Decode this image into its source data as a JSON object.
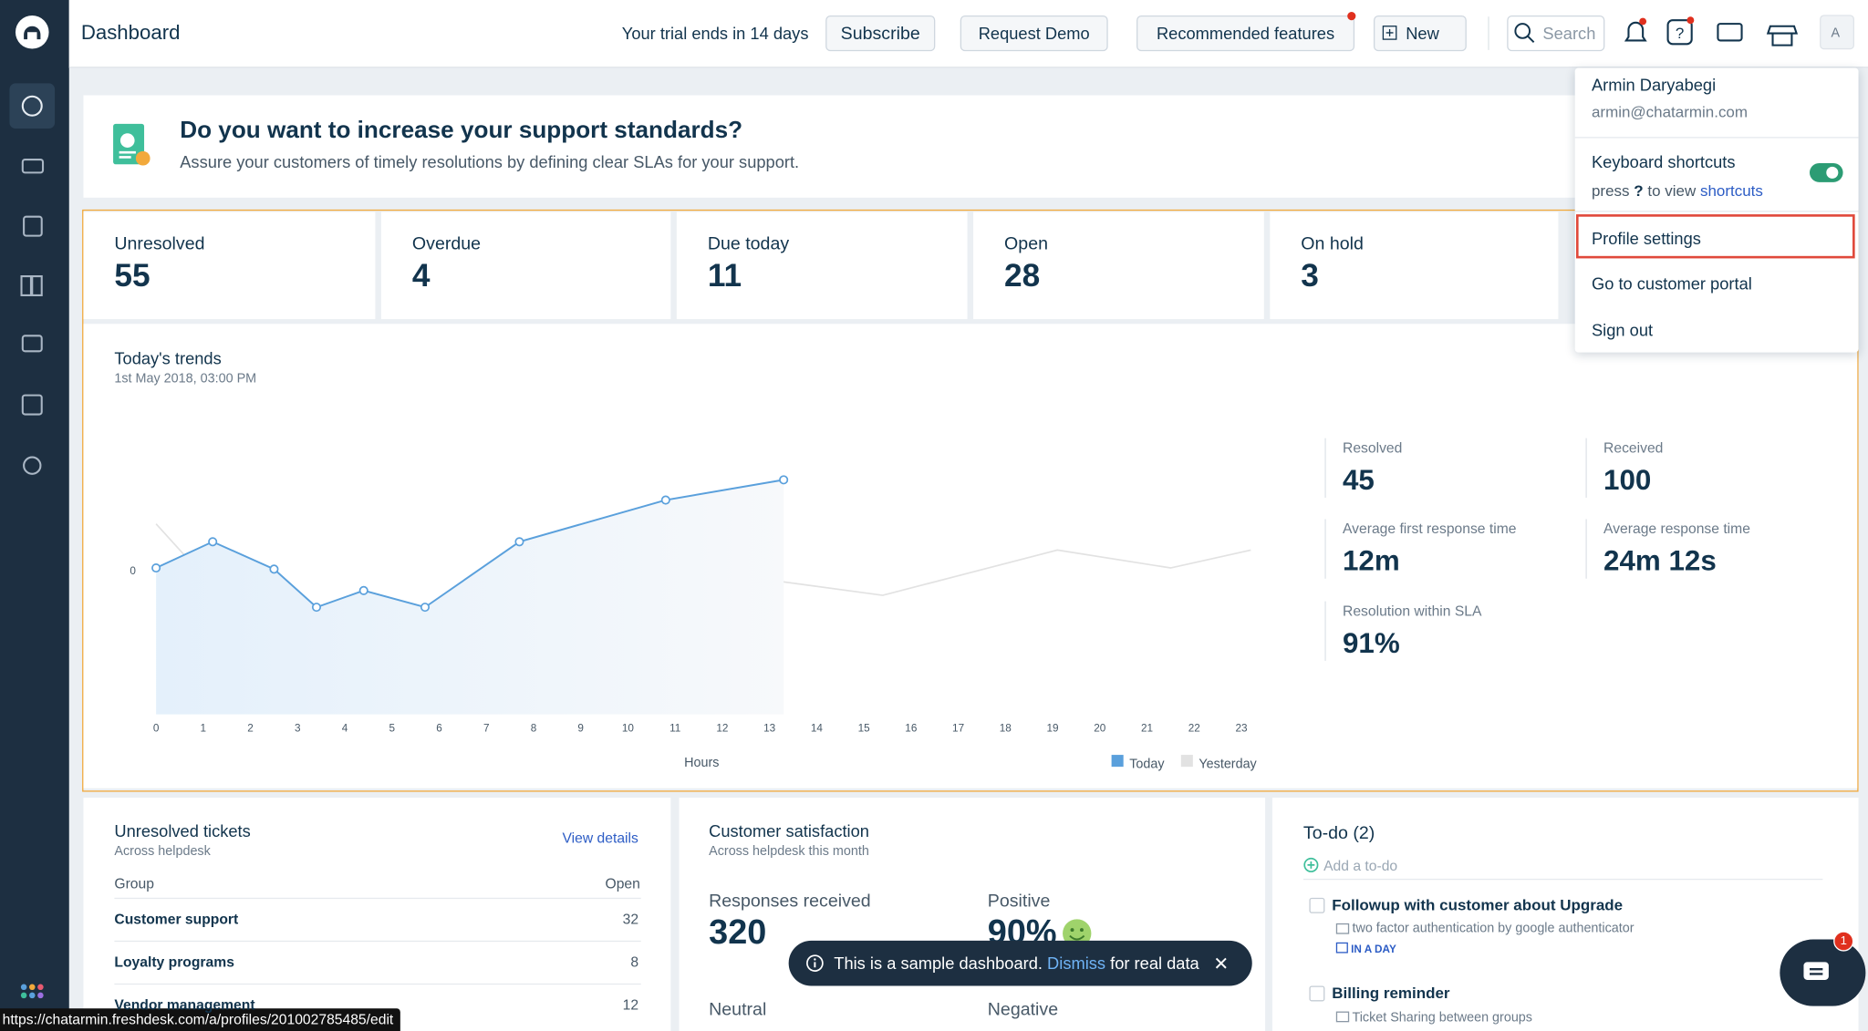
{
  "header": {
    "title": "Dashboard",
    "trial": "Your trial ends in 14 days",
    "buttons": [
      "Subscribe",
      "Request Demo",
      "Recommended features",
      "New"
    ],
    "search": "Search",
    "avatar": "A"
  },
  "banner": {
    "title": "Do you want to increase your support standards?",
    "text": "Assure your customers of timely resolutions by defining clear SLAs for your support."
  },
  "stats": [
    {
      "label": "Unresolved",
      "value": 55
    },
    {
      "label": "Overdue",
      "value": 4
    },
    {
      "label": "Due today",
      "value": 11
    },
    {
      "label": "Open",
      "value": 28
    },
    {
      "label": "On hold",
      "value": 3
    }
  ],
  "trends": {
    "title": "Today's trends",
    "subtitle": "1st May 2018, 03:00 PM",
    "metrics": [
      {
        "label": "Resolved",
        "value": "45"
      },
      {
        "label": "Received",
        "value": "100"
      },
      {
        "label": "Average first response time",
        "value": "12m"
      },
      {
        "label": "Average response time",
        "value": "24m 12s"
      },
      {
        "label": "Resolution within SLA",
        "value": "91%"
      }
    ]
  },
  "chart_data": {
    "type": "line",
    "x_label": "Hours",
    "xlim": [
      0,
      23
    ],
    "ylim": [
      -12.1,
      10
    ],
    "xticks": [
      0,
      1,
      2,
      3,
      4,
      5,
      6,
      7,
      8,
      9,
      10,
      11,
      12,
      13,
      14,
      15,
      16,
      17,
      18,
      19,
      20,
      21,
      22,
      23
    ],
    "yticks": [
      0
    ],
    "legend": "bottom-right",
    "series": [
      {
        "name": "Today",
        "color": "#5aa0dc",
        "x": [
          0,
          1.2,
          2.5,
          3.4,
          4.4,
          5.7,
          7.7,
          10.8,
          13.3
        ],
        "values": [
          0.2,
          2.4,
          0.1,
          -3.1,
          -1.7,
          -3.1,
          2.4,
          5.9,
          7.6
        ]
      },
      {
        "name": "Yesterday",
        "color": "#e2e2e2",
        "x": [
          0,
          1.1,
          2.4,
          3.4,
          4.4,
          6,
          7.7,
          10.2,
          12.6,
          15.4,
          19.1,
          21.5,
          23.2
        ],
        "values": [
          3.9,
          -0.9,
          -3.1,
          -6.6,
          -5.1,
          -6.6,
          -1.6,
          -4.8,
          -0.6,
          -2.1,
          1.7,
          0.2,
          1.7
        ]
      }
    ]
  },
  "unresolved": {
    "title": "Unresolved tickets",
    "subtitle": "Across helpdesk",
    "link": "View details",
    "columns": [
      "Group",
      "Open"
    ],
    "rows": [
      [
        "Customer support",
        32
      ],
      [
        "Loyalty programs",
        8
      ],
      [
        "Vendor management",
        12
      ]
    ]
  },
  "satisfaction": {
    "title": "Customer satisfaction",
    "subtitle": "Across helpdesk this month",
    "items": [
      {
        "label": "Responses received",
        "value": "320"
      },
      {
        "label": "Positive",
        "value": "90%"
      },
      {
        "label": "Neutral"
      },
      {
        "label": "Negative"
      }
    ]
  },
  "todo": {
    "title": "To-do (2)",
    "add": "Add a to-do",
    "items": [
      {
        "title": "Followup with customer about Upgrade",
        "note": "two factor authentication by google authenticator",
        "due": "IN A DAY"
      },
      {
        "title": "Billing reminder",
        "note": "Ticket Sharing between groups"
      }
    ]
  },
  "menu": {
    "name": "Armin Daryabegi",
    "email": "armin@chatarmin.com",
    "shortcuts": "Keyboard shortcuts",
    "hint_pre": "press",
    "hint_key": "?",
    "hint_mid": "to view",
    "hint_link": "shortcuts",
    "items": [
      "Profile settings",
      "Go to customer portal",
      "Sign out"
    ]
  },
  "toast": {
    "text": "This is a sample dashboard.",
    "link": "Dismiss",
    "tail": "for real data"
  },
  "status_url": "https://chatarmin.freshdesk.com/a/profiles/201002785485/edit",
  "chat_badge": "1"
}
